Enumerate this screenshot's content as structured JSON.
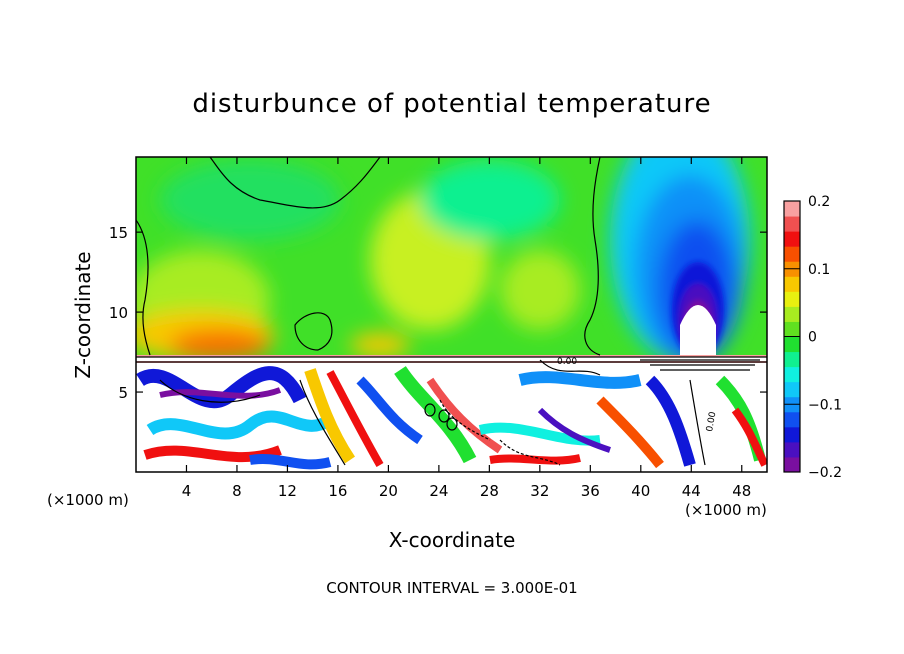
{
  "chart_data": {
    "type": "heatmap",
    "title": "disturbunce of potential temperature",
    "xlabel": "X-coordinate",
    "ylabel": "Z-coordinate",
    "x_unit": "(×1000 m)",
    "x_ticks": [
      4,
      8,
      12,
      16,
      20,
      24,
      28,
      32,
      36,
      40,
      44,
      48
    ],
    "y_ticks": [
      5,
      10,
      15
    ],
    "xlim": [
      0,
      50
    ],
    "ylim": [
      0,
      19.7
    ],
    "colorbar": {
      "min": -0.2,
      "max": 0.2,
      "tick_labels": [
        "0.2",
        "0.1",
        "0",
        "−0.1",
        "−0.2"
      ],
      "tick_values": [
        0.2,
        0.1,
        0,
        -0.1,
        -0.2
      ],
      "colors": [
        "#7a0fa0",
        "#4a10c0",
        "#1018d8",
        "#1050f0",
        "#1090f8",
        "#10c8f8",
        "#10f0e0",
        "#10f090",
        "#20e030",
        "#60e020",
        "#a8ec20",
        "#e8f010",
        "#f8c800",
        "#f89000",
        "#f85000",
        "#f01010",
        "#f05050",
        "#f8a0a0"
      ]
    },
    "annotation": "CONTOUR INTERVAL = 3.000E-01",
    "contour_labels": [
      "0.00",
      "0.00"
    ],
    "grid": false
  }
}
